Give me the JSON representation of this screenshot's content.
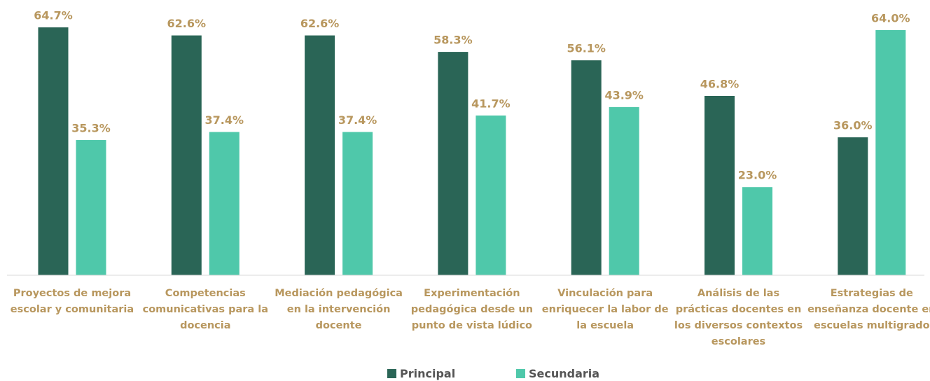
{
  "chart_data": {
    "type": "bar",
    "categories": [
      "Proyectos de mejora escolar y comunitaria",
      "Competencias comunicativas para la docencia",
      "Mediación pedagógica en la intervención docente",
      "Experimentación pedagógica desde un punto de vista lúdico",
      "Vinculación para enriquecer la labor de la escuela",
      "Análisis de las prácticas docentes en los diversos contextos escolares",
      "Estrategias de enseñanza docente en escuelas multigrado"
    ],
    "series": [
      {
        "name": "Principal",
        "color": "#2a6556",
        "values": [
          64.7,
          62.6,
          62.6,
          58.3,
          56.1,
          46.8,
          36.0
        ],
        "value_labels": [
          "64.7%",
          "62.6%",
          "62.6%",
          "58.3%",
          "56.1%",
          "46.8%",
          "36.0%"
        ]
      },
      {
        "name": "Secundaria",
        "color": "#4fc8aa",
        "values": [
          35.3,
          37.4,
          37.4,
          41.7,
          43.9,
          23.0,
          64.0
        ],
        "value_labels": [
          "35.3%",
          "37.4%",
          "37.4%",
          "41.7%",
          "43.9%",
          "23.0%",
          "64.0%"
        ]
      }
    ],
    "label_color": "#b8975e",
    "legend": "bottom"
  }
}
